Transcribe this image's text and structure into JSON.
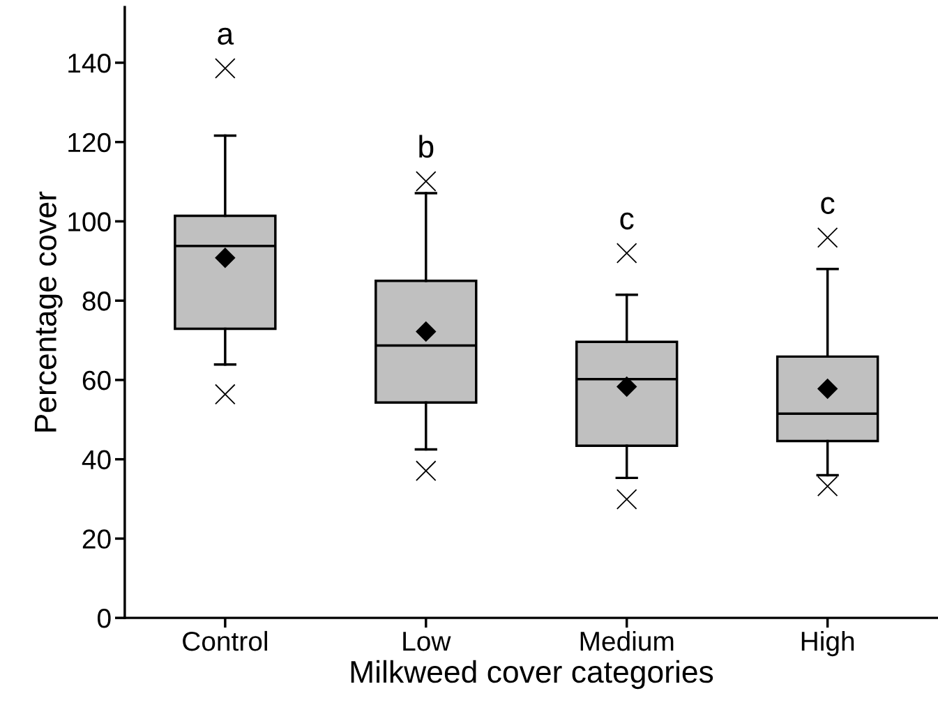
{
  "chart_data": {
    "type": "box",
    "xlabel": "Milkweed cover categories",
    "ylabel": "Percentage cover",
    "categories": [
      "Control",
      "Low",
      "Medium",
      "High"
    ],
    "boxes": [
      {
        "low": 63.9,
        "q1": 72.9,
        "median": 93.8,
        "q3": 101.4,
        "high": 121.6,
        "mean": 90.8,
        "outliers": [
          138.6,
          56.4
        ]
      },
      {
        "low": 42.5,
        "q1": 54.3,
        "median": 68.7,
        "q3": 85.0,
        "high": 107.1,
        "mean": 72.2,
        "outliers": [
          110.1,
          37.1
        ]
      },
      {
        "low": 35.3,
        "q1": 43.4,
        "median": 60.2,
        "q3": 69.6,
        "high": 81.5,
        "mean": 58.3,
        "outliers": [
          92.0,
          29.9
        ]
      },
      {
        "low": 36.0,
        "q1": 44.6,
        "median": 51.5,
        "q3": 65.9,
        "high": 88.0,
        "mean": 57.8,
        "outliers": [
          95.9,
          33.2
        ]
      }
    ],
    "color": "#c0c0c0",
    "ylim": [
      0,
      154
    ],
    "yticks": [
      0,
      20,
      40,
      60,
      80,
      100,
      120,
      140
    ],
    "annotations": [
      "a",
      "b",
      "c",
      "c"
    ],
    "grid": false,
    "legend": false
  }
}
